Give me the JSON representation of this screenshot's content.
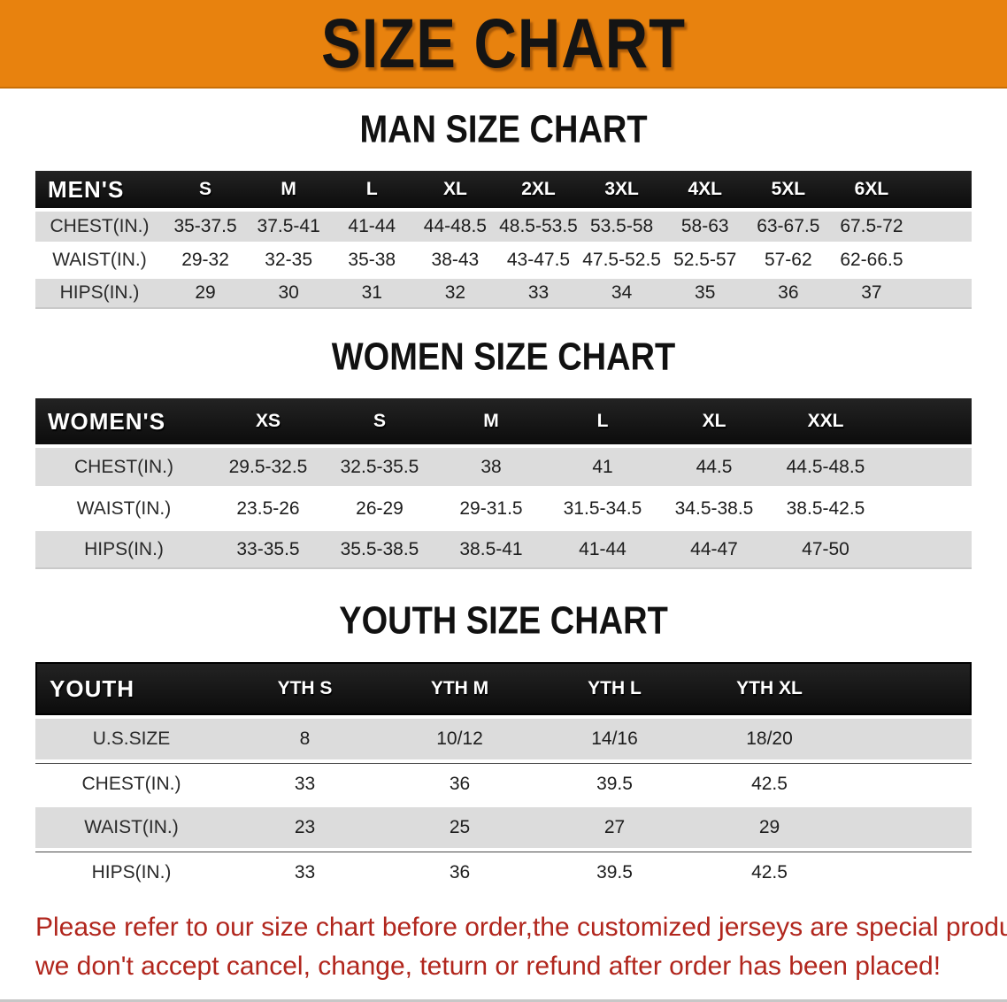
{
  "banner": {
    "title": "SIZE CHART",
    "bg_color": "#e8820e"
  },
  "sections": [
    {
      "heading": "MAN SIZE CHART",
      "group_label": "MEN'S",
      "columns": [
        "S",
        "M",
        "L",
        "XL",
        "2XL",
        "3XL",
        "4XL",
        "5XL",
        "6XL"
      ],
      "rows": [
        {
          "label": "CHEST(IN.)",
          "values": [
            "35-37.5",
            "37.5-41",
            "41-44",
            "44-48.5",
            "48.5-53.5",
            "53.5-58",
            "58-63",
            "63-67.5",
            "67.5-72"
          ]
        },
        {
          "label": "WAIST(IN.)",
          "values": [
            "29-32",
            "32-35",
            "35-38",
            "38-43",
            "43-47.5",
            "47.5-52.5",
            "52.5-57",
            "57-62",
            "62-66.5"
          ]
        },
        {
          "label": "HIPS(IN.)",
          "values": [
            "29",
            "30",
            "31",
            "32",
            "33",
            "34",
            "35",
            "36",
            "37"
          ]
        }
      ]
    },
    {
      "heading": "WOMEN SIZE CHART",
      "group_label": "WOMEN'S",
      "columns": [
        "XS",
        "S",
        "M",
        "L",
        "XL",
        "XXL"
      ],
      "rows": [
        {
          "label": "CHEST(IN.)",
          "values": [
            "29.5-32.5",
            "32.5-35.5",
            "38",
            "41",
            "44.5",
            "44.5-48.5"
          ]
        },
        {
          "label": "WAIST(IN.)",
          "values": [
            "23.5-26",
            "26-29",
            "29-31.5",
            "31.5-34.5",
            "34.5-38.5",
            "38.5-42.5"
          ]
        },
        {
          "label": "HIPS(IN.)",
          "values": [
            "33-35.5",
            "35.5-38.5",
            "38.5-41",
            "41-44",
            "44-47",
            "47-50"
          ]
        }
      ]
    },
    {
      "heading": "YOUTH SIZE CHART",
      "group_label": "YOUTH",
      "columns": [
        "YTH S",
        "YTH M",
        "YTH L",
        "YTH XL"
      ],
      "rows": [
        {
          "label": "U.S.SIZE",
          "values": [
            "8",
            "10/12",
            "14/16",
            "18/20"
          ]
        },
        {
          "label": "CHEST(IN.)",
          "values": [
            "33",
            "36",
            "39.5",
            "42.5"
          ]
        },
        {
          "label": "WAIST(IN.)",
          "values": [
            "23",
            "25",
            "27",
            "29"
          ]
        },
        {
          "label": "HIPS(IN.)",
          "values": [
            "33",
            "36",
            "39.5",
            "42.5"
          ]
        }
      ]
    }
  ],
  "footer": {
    "line1": "Please refer to our size chart before order,the customized jerseys are special products,",
    "line2": "we don't accept cancel, change, teturn or refund after order has been placed!",
    "text_color": "#b1261d"
  }
}
